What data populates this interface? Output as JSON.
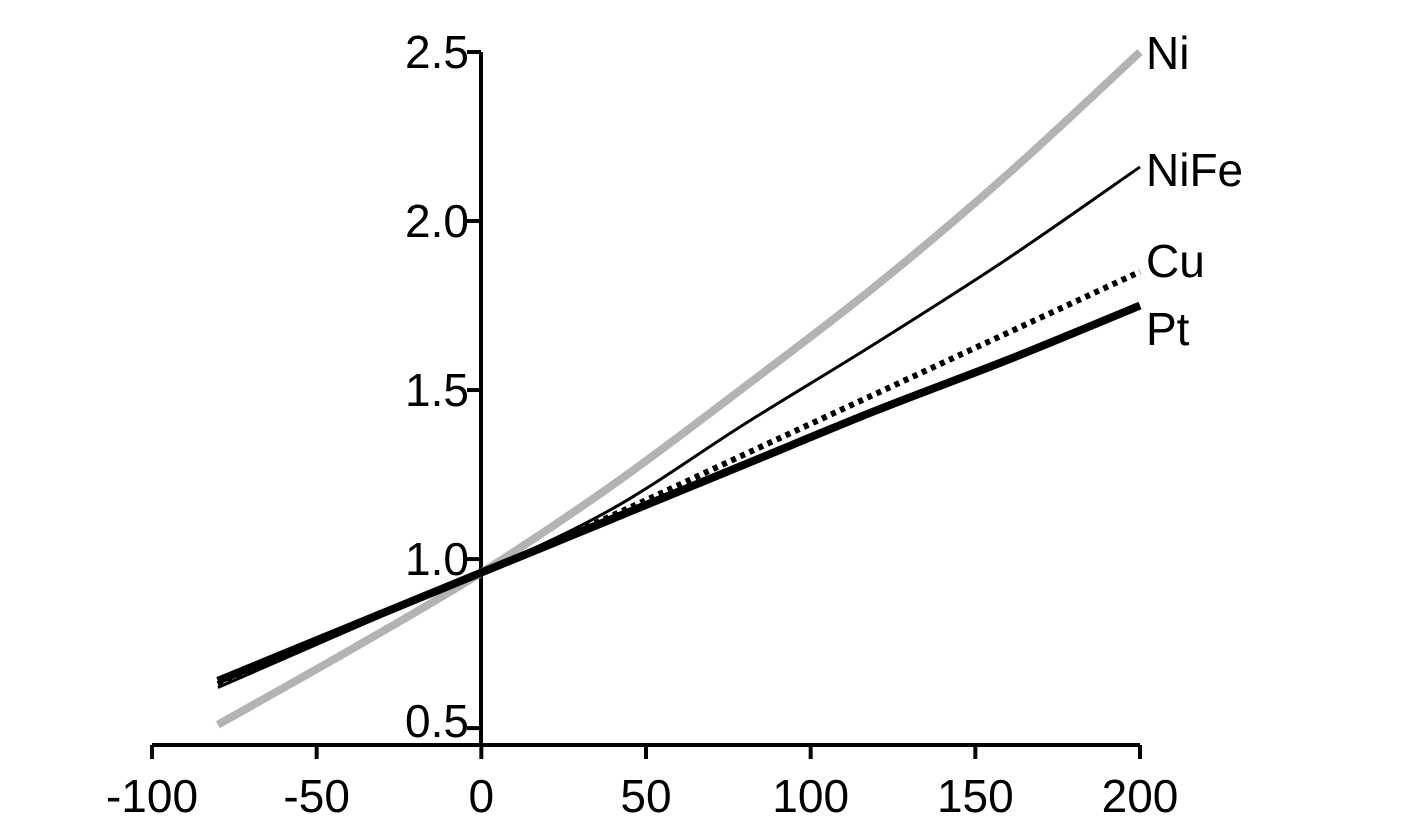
{
  "chart_data": {
    "type": "line",
    "title": "",
    "xlabel": "",
    "ylabel": "",
    "xlim": [
      -100,
      200
    ],
    "ylim": [
      0.45,
      2.5
    ],
    "x_ticks": [
      -100,
      -50,
      0,
      50,
      100,
      150,
      200
    ],
    "x_tick_labels": [
      "-100",
      "-50",
      "0",
      "50",
      "100",
      "150",
      "200"
    ],
    "y_ticks": [
      0.5,
      1.0,
      1.5,
      2.0,
      2.5
    ],
    "y_tick_labels": [
      "0.5",
      "1.0",
      "1.5",
      "2.0",
      "2.5"
    ],
    "grid": false,
    "legend": "inline labels at right end of each line",
    "series": [
      {
        "name": "Ni",
        "color": "#b3b3b3",
        "style": "thick-solid",
        "x": [
          -80,
          -40,
          0,
          40,
          80,
          120,
          160,
          200
        ],
        "y": [
          0.51,
          0.73,
          0.96,
          1.22,
          1.51,
          1.81,
          2.14,
          2.5
        ]
      },
      {
        "name": "NiFe",
        "color": "#000000",
        "style": "thin-solid",
        "x": [
          -80,
          -40,
          0,
          40,
          80,
          120,
          160,
          200
        ],
        "y": [
          0.62,
          0.79,
          0.96,
          1.15,
          1.4,
          1.64,
          1.89,
          2.16
        ]
      },
      {
        "name": "Cu",
        "color": "#000000",
        "style": "dotted",
        "x": [
          -80,
          -40,
          0,
          40,
          80,
          120,
          160,
          200
        ],
        "y": [
          0.63,
          0.8,
          0.96,
          1.13,
          1.31,
          1.49,
          1.67,
          1.85
        ]
      },
      {
        "name": "Pt",
        "color": "#000000",
        "style": "thick-solid",
        "x": [
          -80,
          -40,
          0,
          40,
          80,
          120,
          160,
          200
        ],
        "y": [
          0.64,
          0.8,
          0.96,
          1.12,
          1.28,
          1.44,
          1.59,
          1.75
        ]
      }
    ]
  }
}
